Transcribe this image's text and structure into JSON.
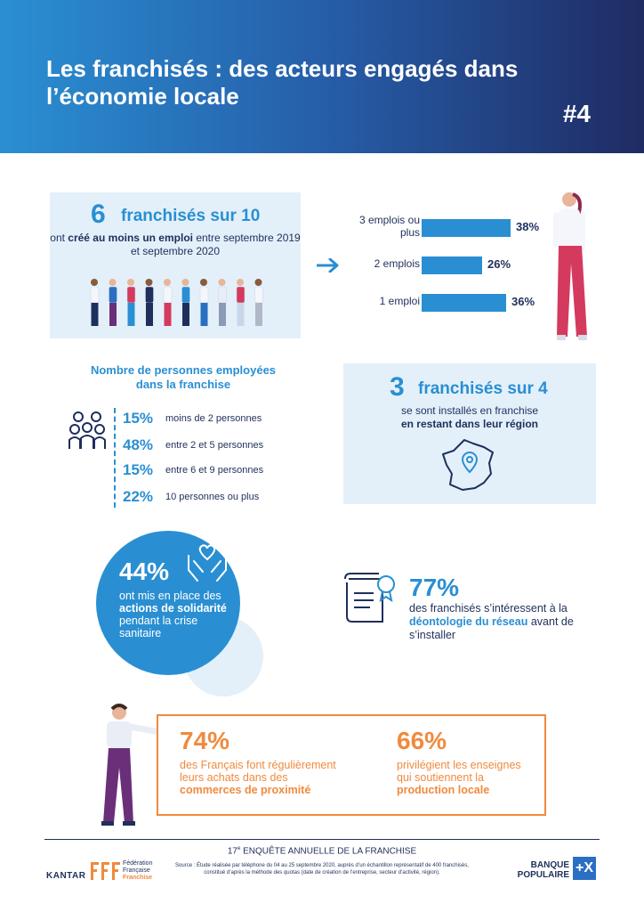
{
  "header": {
    "title": "Les franchisés : des acteurs engagés dans l’économie locale",
    "number": "#4"
  },
  "jobs_panel": {
    "big_number": "6",
    "big_text": "franchisés sur 10",
    "desc_pre": "ont ",
    "desc_bold": "créé au moins un emploi",
    "desc_post": " entre septembre 2019 et septembre 2020"
  },
  "jobs_chart": {
    "chart_data": {
      "type": "bar",
      "categories": [
        "3 emplois ou plus",
        "2 emplois",
        "1 emploi"
      ],
      "values": [
        38,
        26,
        36
      ],
      "labels": [
        "38%",
        "26%",
        "36%"
      ]
    }
  },
  "employees": {
    "title": "Nombre de personnes employées dans la franchise",
    "rows": [
      {
        "pct": "15%",
        "label": "moins de 2 personnes"
      },
      {
        "pct": "48%",
        "label": "entre 2 et 5 personnes"
      },
      {
        "pct": "15%",
        "label": "entre 6 et 9 personnes"
      },
      {
        "pct": "22%",
        "label": "10 personnes ou plus"
      }
    ]
  },
  "region_panel": {
    "big_number": "3",
    "big_text": "franchisés sur 4",
    "desc_line1": "se sont installés en franchise",
    "desc_bold": "en restant dans leur région"
  },
  "solidarity": {
    "pct": "44%",
    "txt_pre": "ont mis en place des ",
    "txt_bold": "actions de solidarité",
    "txt_post": " pendant la crise sanitaire"
  },
  "ethics": {
    "pct": "77%",
    "txt_pre": "des franchisés s’intéressent à la ",
    "txt_bold": "déontologie du réseau",
    "txt_post": " avant de s’installer"
  },
  "local": {
    "pct1": "74%",
    "txt1_pre": "des Français font régulièrement leurs achats dans des ",
    "txt1_bold": "commerces de proximité",
    "pct2": "66%",
    "txt2_pre": "privilégient les enseignes qui soutiennent la ",
    "txt2_bold": "production locale"
  },
  "footer": {
    "survey_ordinal": "17",
    "survey_sup": "e",
    "survey_title": " ENQUÊTE ANNUELLE DE LA FRANCHISE",
    "source": "Source : Étude réalisée par téléphone du 04 au 25 septembre 2020, auprès d’un échantillon représentatif de 400 franchisés, constitué d’après la méthode des quotas (date de création de l’entreprise, secteur d’activité, région).",
    "kantar": "KANTAR",
    "fff_line1": "Fédération",
    "fff_line2": "Française",
    "fff_line3": "Franchise",
    "bp_line1": "BANQUE",
    "bp_line2": "POPULAIRE",
    "bp_mark": "+X"
  },
  "colors": {
    "blue": "#2a8fd2",
    "navy": "#1f2f5c",
    "orange": "#f08a3e",
    "light_blue": "#e3f0fa"
  }
}
